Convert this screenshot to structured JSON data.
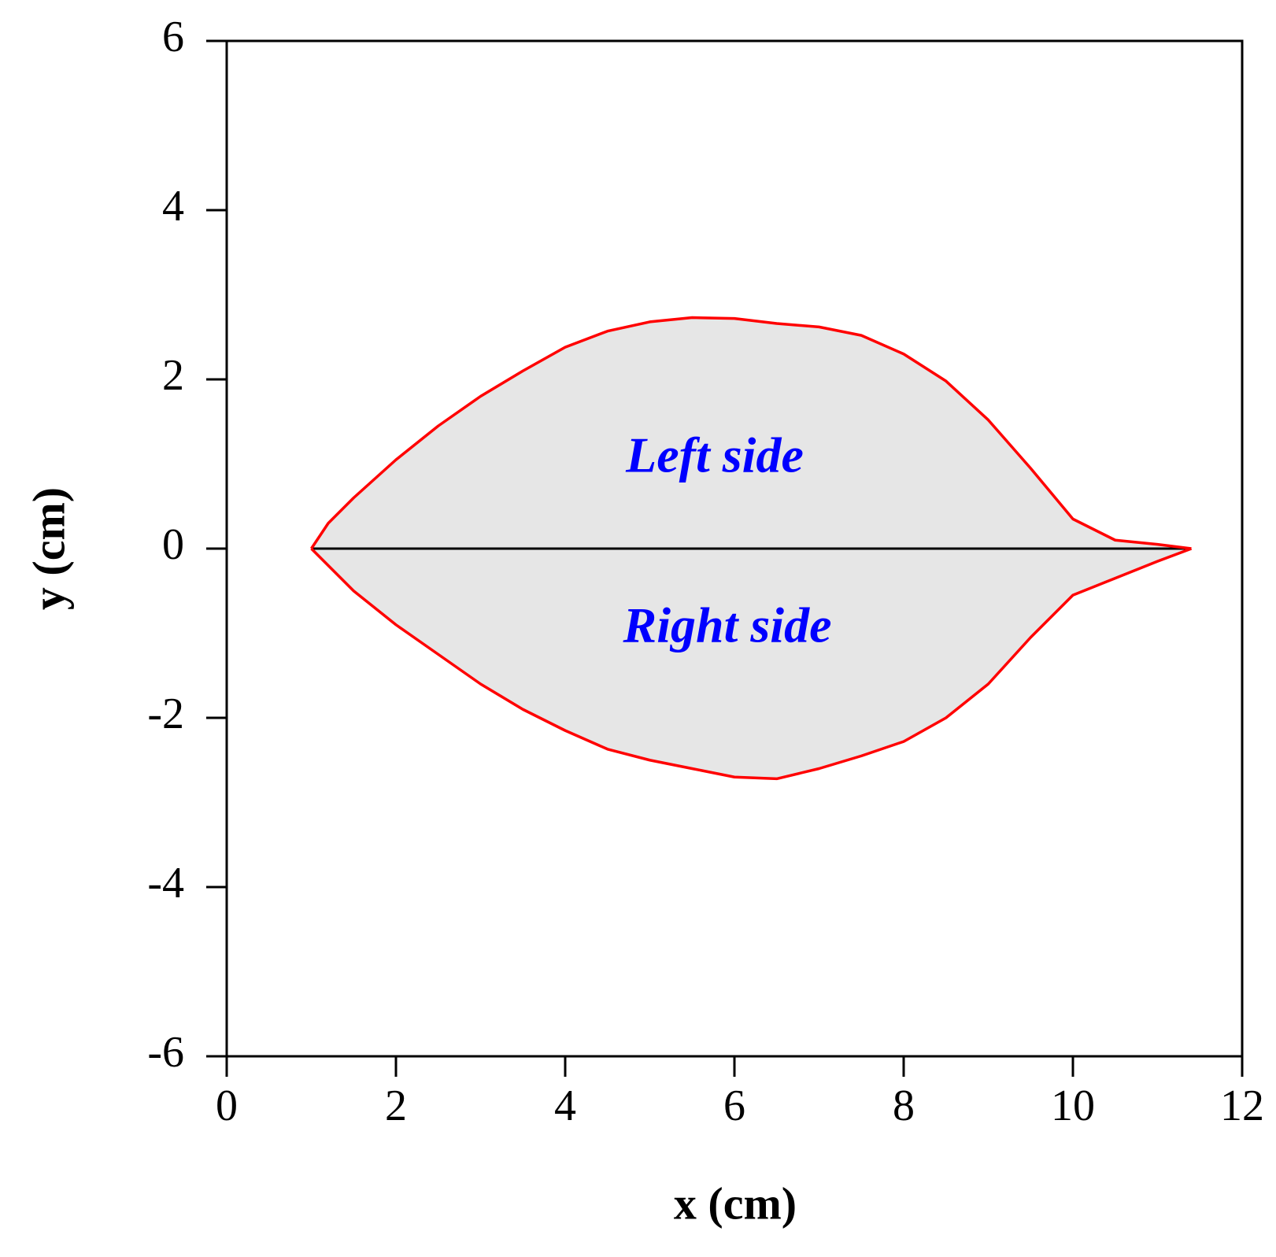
{
  "chart_data": {
    "type": "line",
    "x": [
      1.0,
      1.2,
      1.5,
      2,
      2.5,
      3,
      3.5,
      4,
      4.5,
      5,
      5.5,
      6,
      6.5,
      7,
      7.5,
      8,
      8.5,
      9,
      9.5,
      10,
      10.5,
      11,
      11.4
    ],
    "series": [
      {
        "name": "Left side",
        "color": "#ff0000",
        "values": [
          0,
          0.3,
          0.6,
          1.05,
          1.45,
          1.8,
          2.1,
          2.38,
          2.57,
          2.68,
          2.73,
          2.72,
          2.66,
          2.62,
          2.52,
          2.3,
          1.98,
          1.52,
          0.95,
          0.35,
          0.1,
          0.05,
          0
        ]
      },
      {
        "name": "Right side",
        "color": "#ff0000",
        "values": [
          0,
          -0.2,
          -0.5,
          -0.9,
          -1.25,
          -1.6,
          -1.9,
          -2.15,
          -2.37,
          -2.5,
          -2.6,
          -2.7,
          -2.72,
          -2.6,
          -2.45,
          -2.28,
          -2.0,
          -1.6,
          -1.05,
          -0.55,
          -0.35,
          -0.15,
          0
        ]
      }
    ],
    "fill_color": "#e6e6e6",
    "annotation_color": "#0000ff",
    "xlabel": "x (cm)",
    "ylabel": "y (cm)",
    "xlim": [
      0,
      12
    ],
    "ylim": [
      -6,
      6
    ],
    "xticks": [
      0,
      2,
      4,
      6,
      8,
      10,
      12
    ],
    "yticks": [
      -6,
      -4,
      -2,
      0,
      2,
      4,
      6
    ]
  }
}
